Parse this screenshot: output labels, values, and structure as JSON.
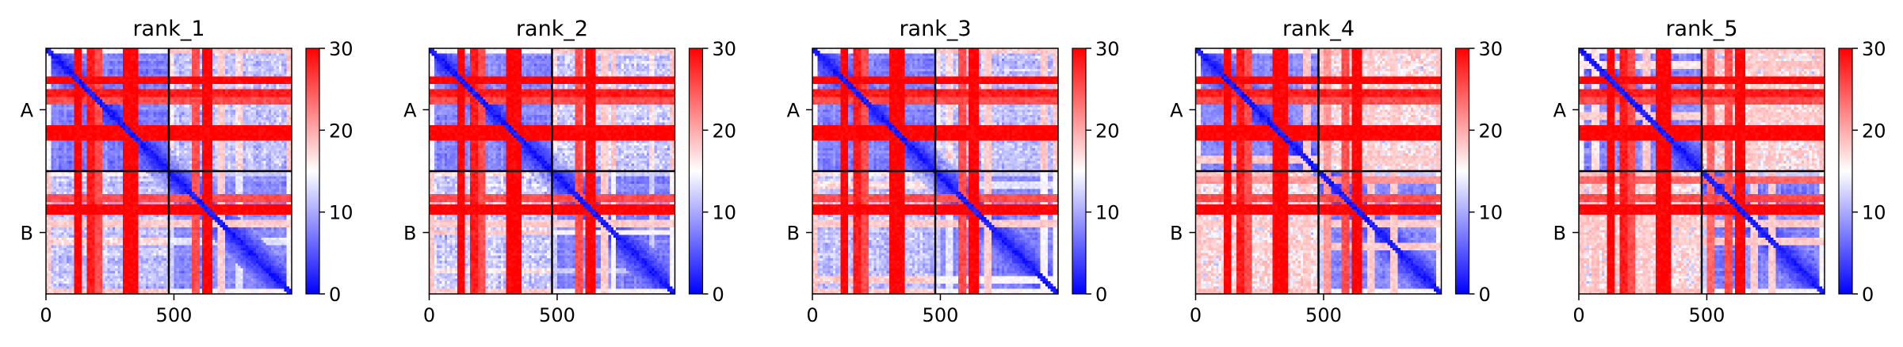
{
  "chart_data": {
    "type": "heatmap",
    "colormap": "bwr",
    "colorbar": {
      "vmin": 0,
      "vmax": 30,
      "ticks": [
        0,
        10,
        20,
        30
      ],
      "tick_labels": [
        "0",
        "10",
        "20",
        "30"
      ]
    },
    "x_ticks": [
      0,
      500
    ],
    "x_tick_labels": [
      "0",
      "500"
    ],
    "xlim": [
      0,
      960
    ],
    "ylim": [
      960,
      0
    ],
    "chain_break": 480,
    "y_tick_labels": [
      "A",
      "B"
    ],
    "panels": [
      {
        "title": "rank_1"
      },
      {
        "title": "rank_2"
      },
      {
        "title": "rank_3"
      },
      {
        "title": "rank_4"
      },
      {
        "title": "rank_5"
      }
    ]
  }
}
